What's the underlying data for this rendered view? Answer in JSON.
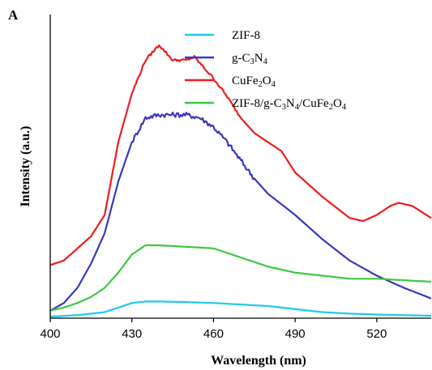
{
  "chart_data": {
    "type": "line",
    "panel_label": "A",
    "xlabel": "Wavelength (nm)",
    "ylabel": "Intensity (a.u.)",
    "xlim": [
      400,
      540
    ],
    "ylim": [
      0,
      100
    ],
    "xticks": [
      "400",
      "430",
      "460",
      "490",
      "520"
    ],
    "xtick_values": [
      400,
      430,
      460,
      490,
      520
    ],
    "yticks_visible": false,
    "grid": false,
    "legend_position": "top-right",
    "series": [
      {
        "name": "ZIF-8",
        "legend": {
          "parts": [
            {
              "t": "ZIF-8",
              "sub": false
            }
          ]
        },
        "color": "#1ec8f0",
        "x": [
          400,
          410,
          420,
          425,
          430,
          435,
          440,
          450,
          460,
          470,
          480,
          490,
          500,
          510,
          520,
          530,
          540
        ],
        "y": [
          0.5,
          1,
          2,
          3.5,
          5.0,
          5.5,
          5.5,
          5.3,
          5.0,
          4.5,
          4.0,
          3.0,
          2.0,
          1.5,
          1.2,
          1.0,
          0.8
        ]
      },
      {
        "name": "g-C3N4",
        "legend": {
          "parts": [
            {
              "t": "g-C",
              "sub": false
            },
            {
              "t": "3",
              "sub": true
            },
            {
              "t": "N",
              "sub": false
            },
            {
              "t": "4",
              "sub": true
            }
          ]
        },
        "color": "#3838c0",
        "x": [
          400,
          405,
          410,
          415,
          420,
          425,
          430,
          435,
          440,
          445,
          450,
          455,
          460,
          465,
          470,
          475,
          480,
          490,
          500,
          510,
          520,
          530,
          540
        ],
        "y": [
          2.5,
          5,
          10,
          18,
          28,
          45,
          58,
          66,
          67,
          67,
          67,
          66,
          63,
          58,
          52,
          46,
          41,
          34,
          26,
          19,
          14,
          10,
          6.5
        ]
      },
      {
        "name": "CuFe2O4",
        "legend": {
          "parts": [
            {
              "t": "CuFe",
              "sub": false
            },
            {
              "t": "2",
              "sub": true
            },
            {
              "t": "O",
              "sub": false
            },
            {
              "t": "4",
              "sub": true
            }
          ]
        },
        "color": "#ee1c1c",
        "x": [
          400,
          405,
          410,
          415,
          420,
          425,
          430,
          435,
          440,
          445,
          450,
          453,
          455,
          460,
          465,
          470,
          475,
          480,
          485,
          490,
          500,
          510,
          515,
          520,
          525,
          528,
          533,
          540
        ],
        "y": [
          17.5,
          19,
          23,
          27,
          34,
          58,
          74,
          85,
          90,
          85,
          85,
          86,
          84,
          79,
          73,
          66,
          61,
          58,
          55,
          48,
          40,
          33,
          32,
          34,
          37,
          38,
          37,
          33
        ]
      },
      {
        "name": "ZIF-8/g-C3N4/CuFe2O4",
        "legend": {
          "parts": [
            {
              "t": "ZIF-8/g-C",
              "sub": false
            },
            {
              "t": "3",
              "sub": true
            },
            {
              "t": "N",
              "sub": false
            },
            {
              "t": "4",
              "sub": true
            },
            {
              "t": "/CuFe",
              "sub": false
            },
            {
              "t": "2",
              "sub": true
            },
            {
              "t": "O",
              "sub": false
            },
            {
              "t": "4",
              "sub": true
            }
          ]
        },
        "color": "#3ec83e",
        "x": [
          400,
          405,
          410,
          415,
          420,
          425,
          430,
          435,
          440,
          450,
          460,
          470,
          480,
          490,
          500,
          510,
          520,
          530,
          540
        ],
        "y": [
          2.5,
          3.5,
          5,
          7,
          10,
          15,
          21,
          24,
          24,
          23.5,
          23,
          20,
          17,
          15,
          14,
          13,
          13,
          12.5,
          12
        ]
      }
    ]
  }
}
